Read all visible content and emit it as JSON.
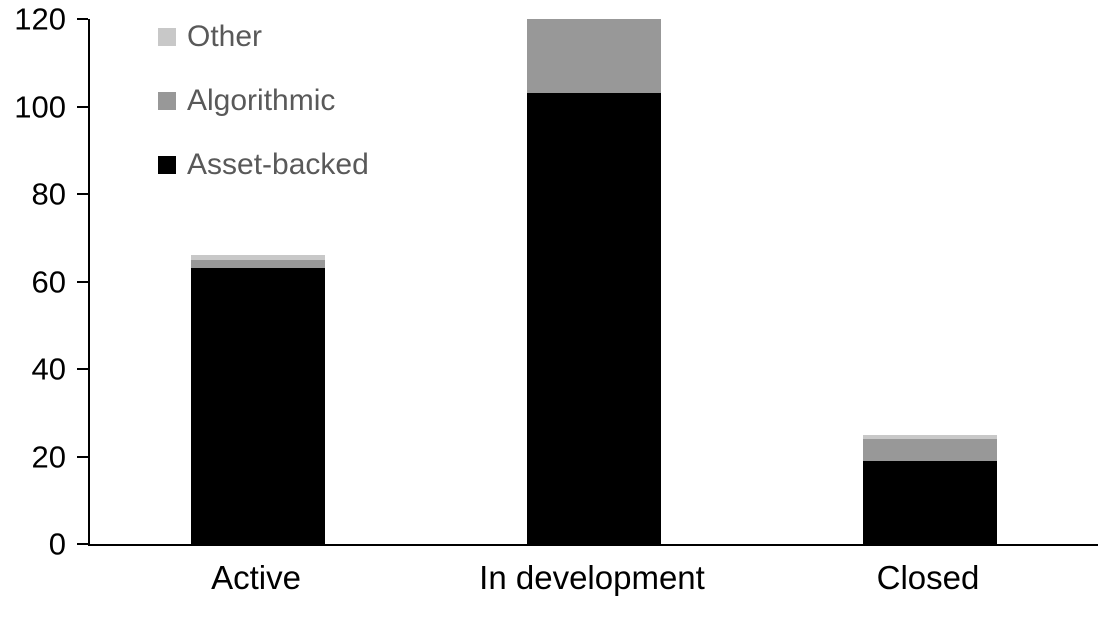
{
  "chart_data": {
    "type": "bar",
    "stacked": true,
    "title": "",
    "categories": [
      "Active",
      "In development",
      "Closed"
    ],
    "series": [
      {
        "name": "Asset-backed",
        "color": "#000000",
        "values": [
          63,
          103,
          19
        ]
      },
      {
        "name": "Algorithmic",
        "color": "#989898",
        "values": [
          2,
          17,
          5
        ]
      },
      {
        "name": "Other",
        "color": "#c8c8c8",
        "values": [
          1,
          0,
          1
        ]
      }
    ],
    "stack_totals": [
      66,
      120,
      25
    ],
    "xlabel": "",
    "ylabel": "",
    "ylim": [
      0,
      120
    ],
    "yticks": [
      0,
      20,
      40,
      60,
      80,
      100,
      120
    ],
    "grid": false,
    "legend_position": "top-left",
    "legend_order": [
      "Other",
      "Algorithmic",
      "Asset-backed"
    ]
  },
  "colors": {
    "background": "#ffffff",
    "axis": "#000000",
    "tick_label": "#000000",
    "category_label": "#000000",
    "legend_text": "#595959"
  }
}
